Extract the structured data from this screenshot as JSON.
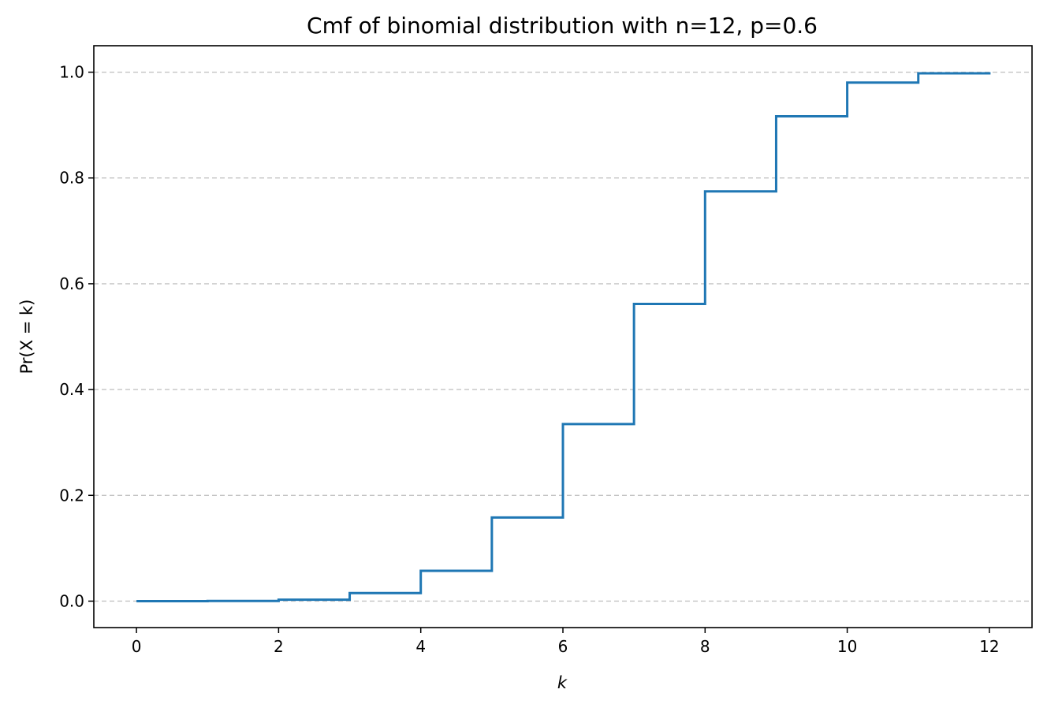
{
  "chart_data": {
    "type": "line",
    "step": "post",
    "title": "Cmf of binomial distribution with n=12, p=0.6",
    "xlabel": "k",
    "ylabel": "Pr(X = k)",
    "xlim": [
      -0.6,
      12.6
    ],
    "ylim": [
      -0.05,
      1.05
    ],
    "xticks": [
      0,
      2,
      4,
      6,
      8,
      10,
      12
    ],
    "xtick_labels": [
      "0",
      "2",
      "4",
      "6",
      "8",
      "10",
      "12"
    ],
    "yticks": [
      0.0,
      0.2,
      0.4,
      0.6,
      0.8,
      1.0
    ],
    "ytick_labels": [
      "0.0",
      "0.2",
      "0.4",
      "0.6",
      "0.8",
      "1.0"
    ],
    "grid": "y-dashed",
    "x": [
      0,
      1,
      2,
      3,
      4,
      5,
      6,
      7,
      8,
      9,
      10,
      11,
      12
    ],
    "y": [
      0.0,
      0.0003,
      0.0028,
      0.0153,
      0.0573,
      0.1582,
      0.3348,
      0.5618,
      0.7747,
      0.9166,
      0.9804,
      0.9978,
      1.0
    ],
    "color": "#1f77b4"
  }
}
